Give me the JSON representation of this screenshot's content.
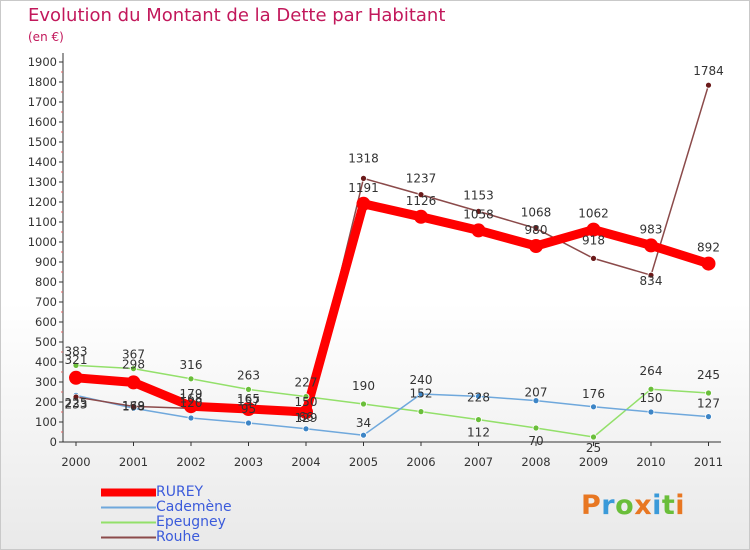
{
  "chart_data": {
    "type": "line",
    "title": "Evolution du Montant de la Dette par Habitant",
    "subtitle": "(en €)",
    "x": [
      "2000",
      "2001",
      "2002",
      "2003",
      "2004",
      "2005",
      "2006",
      "2007",
      "2008",
      "2009",
      "2010",
      "2011"
    ],
    "yticks": [
      0,
      100,
      200,
      300,
      400,
      500,
      600,
      700,
      800,
      900,
      1000,
      1100,
      1200,
      1300,
      1400,
      1500,
      1600,
      1700,
      1800,
      1900
    ],
    "ylim": [
      0,
      1900
    ],
    "grid": false,
    "legend_position": "bottom-left",
    "series": [
      {
        "name": "RUREY",
        "color": "#ff0000",
        "marker_color": "#ff0000",
        "values": [
          321,
          298,
          179,
          165,
          150,
          1191,
          1126,
          1058,
          980,
          1062,
          983,
          892
        ],
        "labels": [
          "321",
          "298",
          "179",
          "165",
          "150",
          "1191",
          "1126",
          "1058",
          "980",
          "1062",
          "983",
          "892"
        ]
      },
      {
        "name": "Cademène",
        "color": "#6fa8dc",
        "marker_color": "#3d85c6",
        "values": [
          233,
          169,
          120,
          95,
          66,
          34,
          240,
          228,
          207,
          176,
          150,
          127
        ],
        "labels": [
          "233",
          "169",
          "120",
          "95",
          "66",
          "34",
          "240",
          "228",
          "207",
          "176",
          "150",
          "127"
        ]
      },
      {
        "name": "Epeugney",
        "color": "#93e06a",
        "marker_color": "#6abe3a",
        "values": [
          383,
          367,
          316,
          263,
          227,
          190,
          152,
          112,
          70,
          25,
          264,
          245
        ],
        "labels": [
          "383",
          "367",
          "316",
          "263",
          "227",
          "190",
          "152",
          "112",
          "70",
          "25",
          "264",
          "245"
        ]
      },
      {
        "name": "Rouhe",
        "color": "#8b4a4a",
        "marker_color": "#6b1a1a",
        "values": [
          225,
          178,
          168,
          157,
          129,
          1318,
          1237,
          1153,
          1068,
          918,
          834,
          1784
        ],
        "labels": [
          "225",
          "178",
          "168",
          "157",
          "129",
          "1318",
          "1237",
          "1153",
          "1068",
          "918",
          "834",
          "1784"
        ]
      }
    ]
  },
  "legend": {
    "items": [
      "RUREY",
      "Cademène",
      "Epeugney",
      "Rouhe"
    ]
  },
  "logo": {
    "letters": [
      "P",
      "r",
      "o",
      "x",
      "i",
      "t",
      "i"
    ],
    "colors": [
      "#e87722",
      "#3a9ad9",
      "#6abe3a",
      "#e87722",
      "#3a9ad9",
      "#6abe3a",
      "#e87722"
    ]
  }
}
